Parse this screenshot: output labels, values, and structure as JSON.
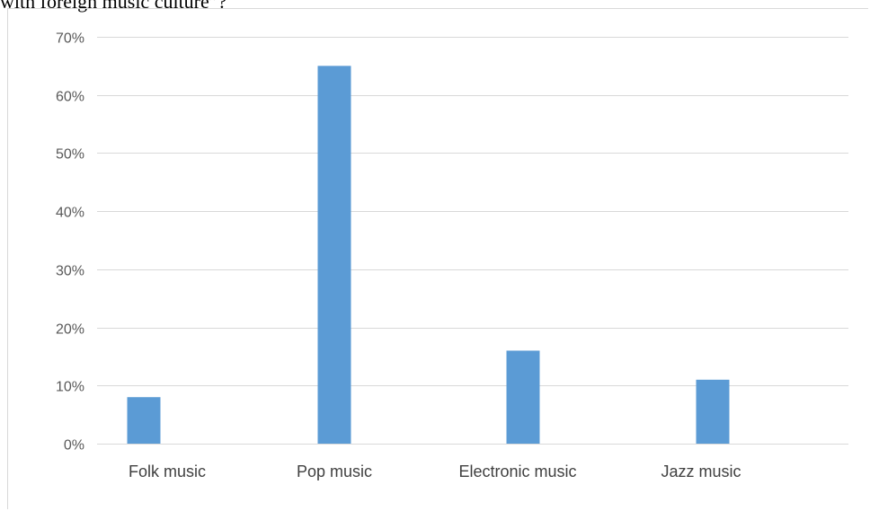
{
  "caption": "with foreign music culture”?",
  "chart_data": {
    "type": "bar",
    "categories": [
      "Folk music",
      "Pop music",
      "Electronic music",
      "Jazz music"
    ],
    "values": [
      8,
      65,
      16,
      11
    ],
    "yticks": [
      "0%",
      "10%",
      "20%",
      "30%",
      "40%",
      "50%",
      "60%",
      "70%"
    ],
    "ylim": [
      0,
      70
    ],
    "grid": true,
    "bar_color": "#5b9bd5",
    "grid_color": "#d9d9d9"
  }
}
